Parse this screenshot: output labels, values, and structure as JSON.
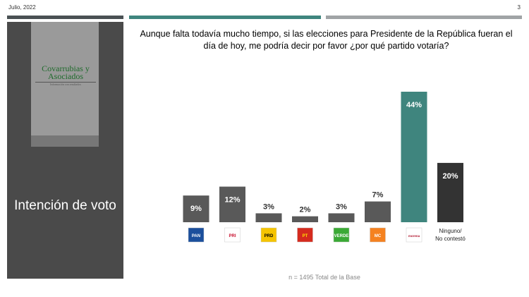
{
  "header": {
    "date": "Julio, 2022",
    "page": "3"
  },
  "sidebar": {
    "logo_text": "Covarrubias y Asociados",
    "logo_tagline": "Información con resultados",
    "title": "Intención de voto"
  },
  "question": "Aunque falta todavía mucho tiempo, si las elecciones para Presidente de la República fueran el día de hoy, me podría decir por favor ¿por qué partido votaría?",
  "footnote": "n = 1495 Total de la Base",
  "colors": {
    "bar": "#595959",
    "morena": "#3f857e",
    "ninguno": "#333333"
  },
  "chart_data": {
    "type": "bar",
    "categories": [
      "PAN",
      "PRI",
      "PRD",
      "PT",
      "VERDE",
      "MC",
      "morena",
      "Ninguno/ No contestó"
    ],
    "values": [
      9,
      12,
      3,
      2,
      3,
      7,
      44,
      20
    ],
    "labels": [
      "9%",
      "12%",
      "3%",
      "2%",
      "3%",
      "7%",
      "44%",
      "20%"
    ],
    "ylim": [
      0,
      44
    ],
    "grid": false
  }
}
